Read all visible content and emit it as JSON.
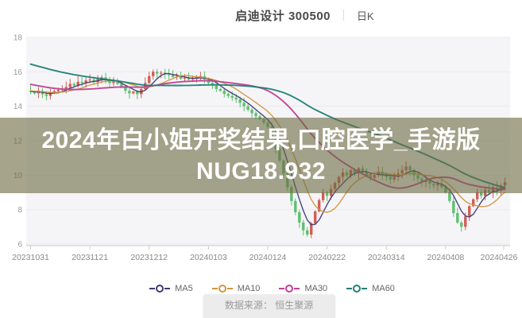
{
  "header": {
    "title": "启迪设计 300500",
    "period_label": "日K"
  },
  "overlay": {
    "line1": "2024年白小姐开奖结果,口腔医学_手游版",
    "line2": "NUG18.932"
  },
  "footer": {
    "source_label": "数据来源： 恒生聚源"
  },
  "chart_data": {
    "type": "candlestick",
    "title": "启迪设计 300500 日K",
    "ylim": [
      6,
      18
    ],
    "y_ticks": [
      18,
      16,
      14,
      12,
      10,
      8,
      6
    ],
    "grid": "horizontal",
    "x_tick_labels": [
      "20231031",
      "20231121",
      "20231212",
      "20240103",
      "20240124",
      "20240222",
      "20240314",
      "20240408",
      "20240426"
    ],
    "x_tick_day_indices": [
      0,
      15,
      30,
      45,
      60,
      75,
      90,
      105,
      120
    ],
    "up_color": "#cf5f55",
    "down_color": "#5fbf6f",
    "plot_bg": "#f5f5f8",
    "grid_color": "#ebebee",
    "axis_color": "#cccccc",
    "tick_label_color": "#999999",
    "closes": [
      14.85,
      14.75,
      14.9,
      14.7,
      14.6,
      14.78,
      14.88,
      14.95,
      15.02,
      15.12,
      15.3,
      15.2,
      15.42,
      15.35,
      15.5,
      15.55,
      15.4,
      15.58,
      15.68,
      15.5,
      15.35,
      15.45,
      15.3,
      15.1,
      14.9,
      14.75,
      14.85,
      14.7,
      15.0,
      15.35,
      15.75,
      16.0,
      15.9,
      15.95,
      15.85,
      15.8,
      15.7,
      15.75,
      15.6,
      15.65,
      15.55,
      15.6,
      15.7,
      15.75,
      15.55,
      15.35,
      15.2,
      15.0,
      14.9,
      14.72,
      14.6,
      14.5,
      14.4,
      14.2,
      14.0,
      13.8,
      13.6,
      13.42,
      13.25,
      13.05,
      12.8,
      12.2,
      11.55,
      10.85,
      10.1,
      9.3,
      8.5,
      7.85,
      7.25,
      6.8,
      6.55,
      7.2,
      7.9,
      8.55,
      9.0,
      8.8,
      9.2,
      9.55,
      9.9,
      10.15,
      10.0,
      10.3,
      10.1,
      10.4,
      10.2,
      10.0,
      9.85,
      10.0,
      10.2,
      10.05,
      9.9,
      9.75,
      9.9,
      10.1,
      10.3,
      10.5,
      10.3,
      10.0,
      9.8,
      9.6,
      9.7,
      9.5,
      9.4,
      9.5,
      9.3,
      9.0,
      8.5,
      7.8,
      7.25,
      7.0,
      7.6,
      8.2,
      8.6,
      9.0,
      8.8,
      9.15,
      9.0,
      9.3,
      9.1,
      9.4,
      9.6
    ],
    "prehistory_closes": [
      18.6,
      18.55,
      18.5,
      18.45,
      18.4,
      18.32,
      18.25,
      18.18,
      18.1,
      18.02,
      17.95,
      17.88,
      17.8,
      17.72,
      17.65,
      17.58,
      17.5,
      17.45,
      17.4,
      17.35,
      17.3,
      17.25,
      17.2,
      17.16,
      17.12,
      17.08,
      17.05,
      17.03,
      17.01,
      17.0,
      16.2,
      16.12,
      16.05,
      15.97,
      15.9,
      15.82,
      15.75,
      15.68,
      15.6,
      15.52,
      15.45,
      15.38,
      15.3,
      15.25,
      15.2,
      15.1,
      15.08,
      15.05,
      15.03,
      15.0,
      14.98,
      14.96,
      14.95,
      14.93,
      14.91,
      14.9,
      14.89,
      14.88,
      14.86,
      14.85
    ],
    "moving_averages": [
      {
        "name": "MA5",
        "period": 5,
        "color": "#3f3b76"
      },
      {
        "name": "MA10",
        "period": 10,
        "color": "#d1973f"
      },
      {
        "name": "MA30",
        "period": 30,
        "color": "#bf3f92"
      },
      {
        "name": "MA60",
        "period": 60,
        "color": "#1f8074"
      }
    ],
    "legend_position": "bottom"
  }
}
